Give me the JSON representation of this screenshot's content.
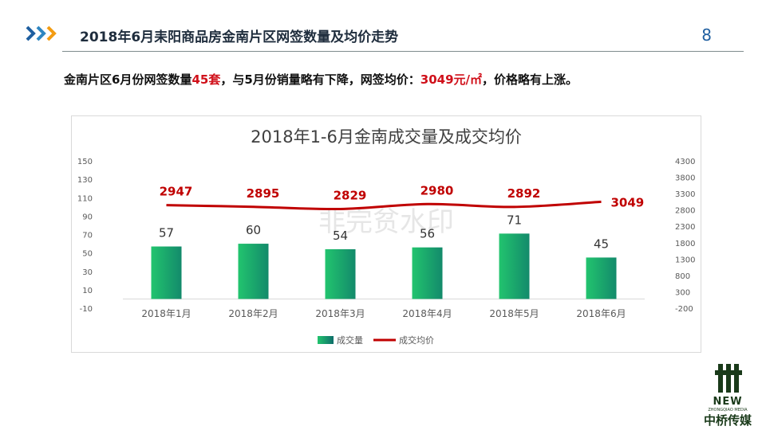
{
  "header": {
    "title": "2018年6月耒阳商品房金南片区网签数量及均价走势",
    "page_number": "8"
  },
  "summary": {
    "part1": "金南片区6月份网签数量",
    "count": "45套",
    "part2": "，与5月份销量略有下降，网签均价：",
    "price": "3049元/㎡",
    "part3": "，价格略有上涨。"
  },
  "chart_data": {
    "type": "bar",
    "title": "2018年1-6月金南成交量及成交均价",
    "categories": [
      "2018年1月",
      "2018年2月",
      "2018年3月",
      "2018年4月",
      "2018年5月",
      "2018年6月"
    ],
    "series": [
      {
        "name": "成交量",
        "type": "bar",
        "axis": "left",
        "values": [
          57,
          60,
          54,
          56,
          71,
          45
        ],
        "color": "#1db46a"
      },
      {
        "name": "成交均价",
        "type": "line",
        "axis": "right",
        "values": [
          2947,
          2895,
          2829,
          2980,
          2892,
          3049
        ],
        "color": "#c00000"
      }
    ],
    "left_axis": {
      "min": -10,
      "max": 150,
      "ticks": [
        -10,
        10,
        30,
        50,
        70,
        90,
        110,
        130,
        150
      ]
    },
    "right_axis": {
      "min": -200,
      "max": 4300,
      "ticks": [
        -200,
        300,
        800,
        1300,
        1800,
        2300,
        2800,
        3300,
        3800,
        4300
      ]
    },
    "legend_position": "bottom",
    "grid": false
  },
  "watermark": {
    "text": "非完贫水印"
  },
  "logo": {
    "new": "NEW",
    "sub": "ZHONGQIAO MEDIA",
    "cn": "中桥传媒"
  }
}
